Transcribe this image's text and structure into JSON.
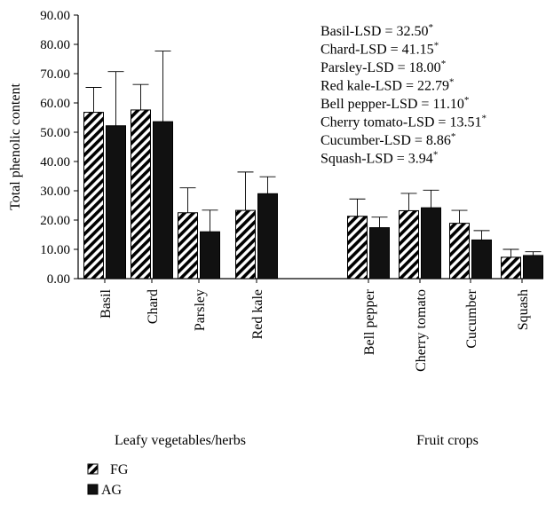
{
  "chart_data": {
    "type": "bar",
    "ylabel": "Total phenolic content",
    "ylim": [
      0,
      90
    ],
    "yticks": [
      "0.00",
      "10.00",
      "20.00",
      "30.00",
      "40.00",
      "50.00",
      "60.00",
      "70.00",
      "80.00",
      "90.00"
    ],
    "categories": [
      "Basil",
      "Chard",
      "Parsley",
      "Red kale",
      "Bell pepper",
      "Cherry tomato",
      "Cucumber",
      "Squash"
    ],
    "groups": [
      {
        "label": "Leafy vegetables/herbs",
        "categories": [
          "Basil",
          "Chard",
          "Parsley",
          "Red kale"
        ]
      },
      {
        "label": "Fruit crops",
        "categories": [
          "Bell pepper",
          "Cherry tomato",
          "Cucumber",
          "Squash"
        ]
      }
    ],
    "series": [
      {
        "name": "FG",
        "pattern": "hatched",
        "values": [
          56.8,
          57.6,
          22.5,
          23.3,
          21.3,
          23.2,
          18.9,
          7.3
        ],
        "error_upper": [
          65.3,
          66.3,
          31.0,
          36.4,
          27.2,
          29.1,
          23.3,
          10.0
        ]
      },
      {
        "name": "AG",
        "color": "#111111",
        "values": [
          52.2,
          53.6,
          16.0,
          29.0,
          17.4,
          24.2,
          13.2,
          7.9
        ],
        "error_upper": [
          70.7,
          77.7,
          23.4,
          34.8,
          21.0,
          30.2,
          16.4,
          9.2
        ]
      }
    ],
    "annotations": [
      "Basil-LSD = 32.50",
      "Chard-LSD = 41.15",
      "Parsley-LSD = 18.00",
      "Red kale-LSD = 22.79",
      "Bell pepper-LSD = 11.10",
      "Cherry tomato-LSD = 13.51",
      "Cucumber-LSD = 8.86",
      "Squash-LSD  = 3.94"
    ],
    "annotation_mark": "*",
    "grid": false,
    "legend_position": "bottom-left"
  }
}
